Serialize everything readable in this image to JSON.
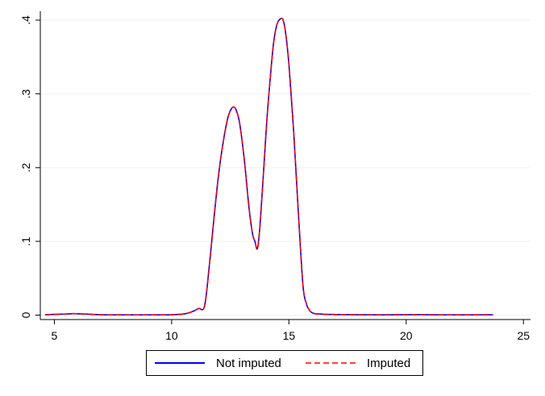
{
  "chart_data": {
    "type": "line",
    "xlim": [
      4.4,
      25.3
    ],
    "ylim": [
      -0.006,
      0.412
    ],
    "x_ticks": [
      5,
      10,
      15,
      20,
      25
    ],
    "x_tick_labels": [
      "5",
      "10",
      "15",
      "20",
      "25"
    ],
    "y_ticks": [
      0,
      0.1,
      0.2,
      0.3,
      0.4
    ],
    "y_tick_labels": [
      "0",
      ".1",
      ".2",
      ".3",
      ".4"
    ],
    "grid": "horizontal",
    "legend_position": "bottom",
    "series": [
      {
        "name": "Not imputed",
        "color": "#0000ff",
        "dash": "solid",
        "x": [
          4.6,
          5.0,
          5.5,
          5.8,
          6.3,
          7.0,
          8.0,
          9.0,
          10.0,
          10.6,
          10.9,
          11.15,
          11.4,
          11.6,
          11.8,
          12.0,
          12.2,
          12.4,
          12.55,
          12.65,
          12.75,
          12.9,
          13.1,
          13.3,
          13.45,
          13.55,
          13.65,
          13.75,
          13.9,
          14.05,
          14.2,
          14.35,
          14.5,
          14.65,
          14.75,
          14.85,
          15.0,
          15.2,
          15.4,
          15.6,
          15.75,
          15.85,
          15.95,
          16.1,
          16.3,
          16.6,
          17.0,
          18.0,
          19.0,
          20.0,
          21.0,
          22.0,
          23.0,
          23.7
        ],
        "y": [
          0.0005,
          0.001,
          0.0015,
          0.002,
          0.0015,
          0.0005,
          0.0003,
          0.0003,
          0.0005,
          0.002,
          0.005,
          0.009,
          0.012,
          0.065,
          0.13,
          0.19,
          0.235,
          0.268,
          0.28,
          0.282,
          0.278,
          0.26,
          0.21,
          0.145,
          0.11,
          0.1,
          0.09,
          0.115,
          0.185,
          0.26,
          0.32,
          0.37,
          0.395,
          0.402,
          0.4,
          0.385,
          0.34,
          0.25,
          0.14,
          0.04,
          0.015,
          0.008,
          0.004,
          0.002,
          0.0015,
          0.001,
          0.0008,
          0.0005,
          0.0004,
          0.0006,
          0.0005,
          0.0003,
          0.0004,
          0.0005
        ]
      },
      {
        "name": "Imputed",
        "color": "#ff0000",
        "dash": "dashed",
        "x": [
          4.6,
          5.0,
          5.5,
          5.8,
          6.3,
          7.0,
          8.0,
          9.0,
          10.0,
          10.6,
          10.9,
          11.15,
          11.4,
          11.6,
          11.8,
          12.0,
          12.2,
          12.4,
          12.55,
          12.65,
          12.75,
          12.9,
          13.1,
          13.3,
          13.45,
          13.55,
          13.65,
          13.75,
          13.9,
          14.05,
          14.2,
          14.35,
          14.5,
          14.65,
          14.75,
          14.85,
          15.0,
          15.2,
          15.4,
          15.6,
          15.75,
          15.85,
          15.95,
          16.1,
          16.3,
          16.6,
          17.0,
          18.0,
          19.0,
          20.0,
          21.0,
          22.0,
          23.0,
          23.7
        ],
        "y": [
          0.0005,
          0.001,
          0.0015,
          0.002,
          0.0015,
          0.0005,
          0.0003,
          0.0003,
          0.0005,
          0.002,
          0.005,
          0.009,
          0.012,
          0.065,
          0.13,
          0.19,
          0.235,
          0.268,
          0.28,
          0.282,
          0.278,
          0.26,
          0.21,
          0.145,
          0.11,
          0.1,
          0.09,
          0.115,
          0.185,
          0.26,
          0.32,
          0.37,
          0.395,
          0.402,
          0.4,
          0.385,
          0.34,
          0.25,
          0.14,
          0.04,
          0.015,
          0.008,
          0.004,
          0.002,
          0.0015,
          0.001,
          0.0008,
          0.0005,
          0.0004,
          0.0006,
          0.0005,
          0.0003,
          0.0004,
          0.0005
        ]
      }
    ]
  }
}
